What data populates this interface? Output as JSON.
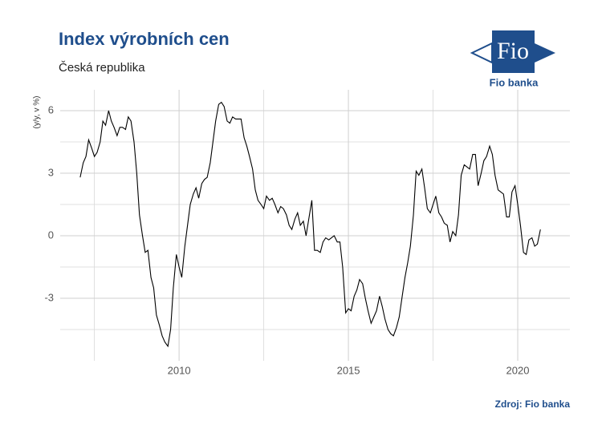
{
  "chart_data": {
    "type": "line",
    "title": "Index výrobních cen",
    "subtitle": "Česká republika",
    "y_label": "(y/y, v %)",
    "source": "Zdroj: Fio banka",
    "logo": {
      "text": "Fio",
      "caption": "Fio banka"
    },
    "xlim": [
      2006.49,
      2021.54
    ],
    "xticks": [
      2010,
      2015,
      2020
    ],
    "xminor": [
      2007.5,
      2012.5,
      2017.5
    ],
    "ylim": [
      -6,
      7
    ],
    "yticks": [
      -3,
      0,
      3,
      6
    ],
    "yminor": [
      -4.5,
      -1.5,
      1.5,
      4.5
    ],
    "grid": true,
    "color": "#000000",
    "x": [
      2007.08,
      2007.17,
      2007.25,
      2007.33,
      2007.42,
      2007.5,
      2007.58,
      2007.67,
      2007.75,
      2007.83,
      2007.92,
      2008,
      2008.08,
      2008.17,
      2008.25,
      2008.33,
      2008.42,
      2008.5,
      2008.58,
      2008.67,
      2008.75,
      2008.83,
      2008.92,
      2009,
      2009.08,
      2009.17,
      2009.25,
      2009.33,
      2009.42,
      2009.5,
      2009.58,
      2009.67,
      2009.75,
      2009.83,
      2009.92,
      2010,
      2010.08,
      2010.17,
      2010.25,
      2010.33,
      2010.42,
      2010.5,
      2010.58,
      2010.67,
      2010.75,
      2010.83,
      2010.92,
      2011,
      2011.08,
      2011.17,
      2011.25,
      2011.33,
      2011.42,
      2011.5,
      2011.58,
      2011.67,
      2011.75,
      2011.83,
      2011.92,
      2012,
      2012.08,
      2012.17,
      2012.25,
      2012.33,
      2012.42,
      2012.5,
      2012.58,
      2012.67,
      2012.75,
      2012.83,
      2012.92,
      2013,
      2013.08,
      2013.17,
      2013.25,
      2013.33,
      2013.42,
      2013.5,
      2013.58,
      2013.67,
      2013.75,
      2013.83,
      2013.92,
      2014,
      2014.08,
      2014.17,
      2014.25,
      2014.33,
      2014.42,
      2014.5,
      2014.58,
      2014.67,
      2014.75,
      2014.83,
      2014.92,
      2015,
      2015.08,
      2015.17,
      2015.25,
      2015.33,
      2015.42,
      2015.5,
      2015.58,
      2015.67,
      2015.75,
      2015.83,
      2015.92,
      2016,
      2016.08,
      2016.17,
      2016.25,
      2016.33,
      2016.42,
      2016.5,
      2016.58,
      2016.67,
      2016.75,
      2016.83,
      2016.92,
      2017,
      2017.08,
      2017.17,
      2017.25,
      2017.33,
      2017.42,
      2017.5,
      2017.58,
      2017.67,
      2017.75,
      2017.83,
      2017.92,
      2018,
      2018.08,
      2018.17,
      2018.25,
      2018.33,
      2018.42,
      2018.5,
      2018.58,
      2018.67,
      2018.75,
      2018.83,
      2018.92,
      2019,
      2019.08,
      2019.17,
      2019.25,
      2019.33,
      2019.42,
      2019.5,
      2019.58,
      2019.67,
      2019.75,
      2019.83,
      2019.92,
      2020,
      2020.08,
      2020.17,
      2020.25,
      2020.33,
      2020.42,
      2020.5,
      2020.58,
      2020.67
    ],
    "values": [
      2.8,
      3.5,
      3.8,
      4.6,
      4.2,
      3.8,
      4.0,
      4.5,
      5.5,
      5.3,
      6.0,
      5.5,
      5.2,
      4.8,
      5.2,
      5.2,
      5.1,
      5.7,
      5.5,
      4.5,
      3.0,
      1.0,
      0.0,
      -0.8,
      -0.7,
      -2.0,
      -2.5,
      -3.8,
      -4.3,
      -4.8,
      -5.1,
      -5.3,
      -4.5,
      -2.5,
      -0.9,
      -1.5,
      -2.0,
      -0.5,
      0.5,
      1.5,
      2.0,
      2.3,
      1.8,
      2.5,
      2.7,
      2.8,
      3.5,
      4.5,
      5.5,
      6.3,
      6.4,
      6.2,
      5.5,
      5.4,
      5.7,
      5.6,
      5.6,
      5.6,
      4.7,
      4.3,
      3.8,
      3.2,
      2.2,
      1.7,
      1.5,
      1.3,
      1.9,
      1.7,
      1.8,
      1.5,
      1.1,
      1.4,
      1.3,
      1.0,
      0.5,
      0.3,
      0.8,
      1.1,
      0.5,
      0.7,
      0.0,
      0.8,
      1.7,
      -0.7,
      -0.7,
      -0.8,
      -0.3,
      -0.1,
      -0.2,
      -0.1,
      0.0,
      -0.3,
      -0.3,
      -1.5,
      -3.7,
      -3.5,
      -3.6,
      -2.9,
      -2.6,
      -2.1,
      -2.3,
      -3.0,
      -3.6,
      -4.2,
      -3.9,
      -3.6,
      -2.9,
      -3.4,
      -4.0,
      -4.5,
      -4.7,
      -4.8,
      -4.4,
      -3.9,
      -3.0,
      -2.0,
      -1.3,
      -0.5,
      1.0,
      3.1,
      2.9,
      3.2,
      2.3,
      1.3,
      1.1,
      1.5,
      1.9,
      1.1,
      0.9,
      0.6,
      0.5,
      -0.3,
      0.2,
      0.0,
      1.0,
      2.9,
      3.4,
      3.3,
      3.2,
      3.9,
      3.9,
      2.4,
      3.0,
      3.6,
      3.8,
      4.3,
      3.9,
      2.9,
      2.2,
      2.1,
      2.0,
      0.9,
      0.9,
      2.1,
      2.4,
      1.5,
      0.5,
      -0.8,
      -0.9,
      -0.2,
      -0.1,
      -0.5,
      -0.4,
      0.3
    ]
  }
}
